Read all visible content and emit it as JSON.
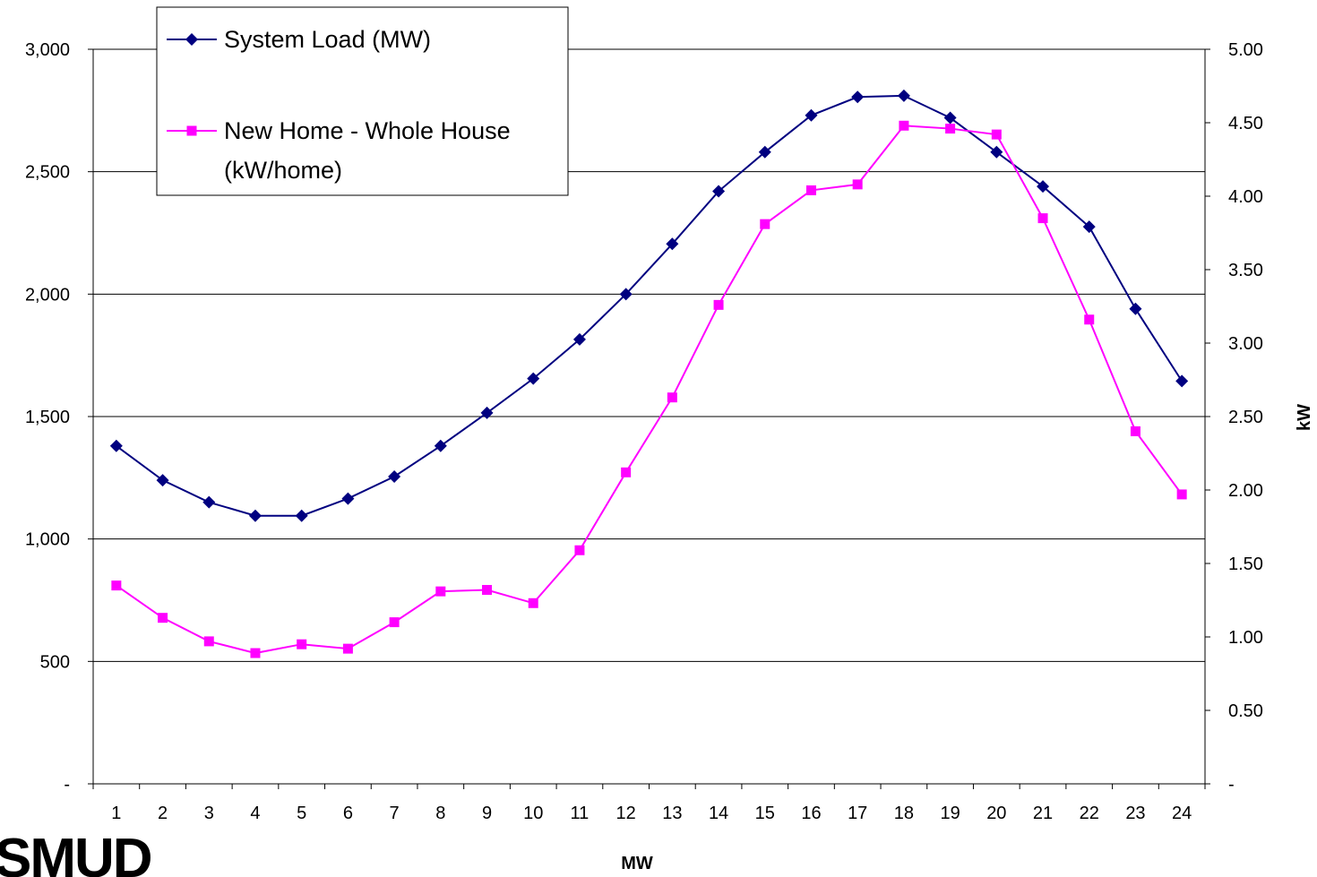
{
  "chart_data": {
    "type": "line",
    "title": "",
    "xlabel": "MW",
    "ylabel": "",
    "y2label": "kW",
    "categories": [
      "1",
      "2",
      "3",
      "4",
      "5",
      "6",
      "7",
      "8",
      "9",
      "10",
      "11",
      "12",
      "13",
      "14",
      "15",
      "16",
      "17",
      "18",
      "19",
      "20",
      "21",
      "22",
      "23",
      "24"
    ],
    "ylim": [
      0,
      3000
    ],
    "y2lim": [
      0,
      5
    ],
    "yticks": [
      "-",
      "500",
      "1,000",
      "1,500",
      "2,000",
      "2,500",
      "3,000"
    ],
    "y2ticks": [
      "-",
      "0.50",
      "1.00",
      "1.50",
      "2.00",
      "2.50",
      "3.00",
      "3.50",
      "4.00",
      "4.50",
      "5.00"
    ],
    "grid": true,
    "legend_position": "top-left",
    "series": [
      {
        "name": "System Load (MW)",
        "axis": "left",
        "color": "#000080",
        "marker": "diamond",
        "values": [
          1380,
          1240,
          1150,
          1095,
          1095,
          1165,
          1255,
          1380,
          1515,
          1655,
          1815,
          2000,
          2205,
          2420,
          2580,
          2730,
          2805,
          2810,
          2720,
          2580,
          2440,
          2275,
          1940,
          1645
        ]
      },
      {
        "name": "New Home - Whole House (kW/home)",
        "legend_lines": [
          "New Home - Whole House",
          "(kW/home)"
        ],
        "axis": "right",
        "color": "#FF00FF",
        "marker": "square",
        "values": [
          1.35,
          1.13,
          0.97,
          0.89,
          0.95,
          0.92,
          1.1,
          1.31,
          1.32,
          1.23,
          1.59,
          2.12,
          2.63,
          3.26,
          3.81,
          4.04,
          4.08,
          4.48,
          4.46,
          4.42,
          3.85,
          3.16,
          2.4,
          1.97
        ]
      }
    ]
  },
  "logo": {
    "text": "SMUD"
  }
}
